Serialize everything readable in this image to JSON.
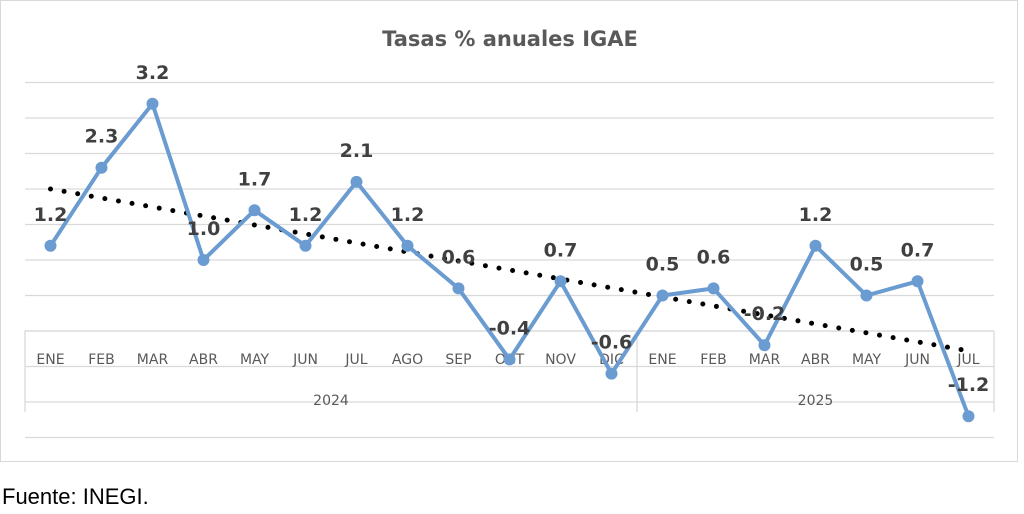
{
  "chart_data": {
    "type": "line",
    "title": "Tasas % anuales IGAE",
    "categories": [
      "ENE",
      "FEB",
      "MAR",
      "ABR",
      "MAY",
      "JUN",
      "JUL",
      "AGO",
      "SEP",
      "OCT",
      "NOV",
      "DIC",
      "ENE",
      "FEB",
      "MAR",
      "ABR",
      "MAY",
      "JUN",
      "JUL"
    ],
    "groups": [
      {
        "label": "2024",
        "count": 12
      },
      {
        "label": "2025",
        "count": 7
      }
    ],
    "series": [
      {
        "name": "IGAE",
        "color": "#6a9bd1",
        "values": [
          1.2,
          2.3,
          3.2,
          1.0,
          1.7,
          1.2,
          2.1,
          1.2,
          0.6,
          -0.4,
          0.7,
          -0.6,
          0.5,
          0.6,
          -0.2,
          1.2,
          0.5,
          0.7,
          -1.2
        ],
        "labels": [
          "1.2",
          "2.3",
          "3.2",
          "1.0",
          "1.7",
          "1.2",
          "2.1",
          "1.2",
          "0.6",
          "-0.4",
          "0.7",
          "-0.6",
          "0.5",
          "0.6",
          "-0.2",
          "1.2",
          "0.5",
          "0.7",
          "-1.2"
        ]
      },
      {
        "name": "Tendencia lineal",
        "color": "#000000",
        "style": "dotted",
        "start": 2.0,
        "end": -0.28
      }
    ],
    "ylim": [
      -1.5,
      3.5
    ],
    "grid_step": 0.5,
    "grid": true,
    "xlabel": "",
    "ylabel": ""
  },
  "source": "Fuente: INEGI."
}
